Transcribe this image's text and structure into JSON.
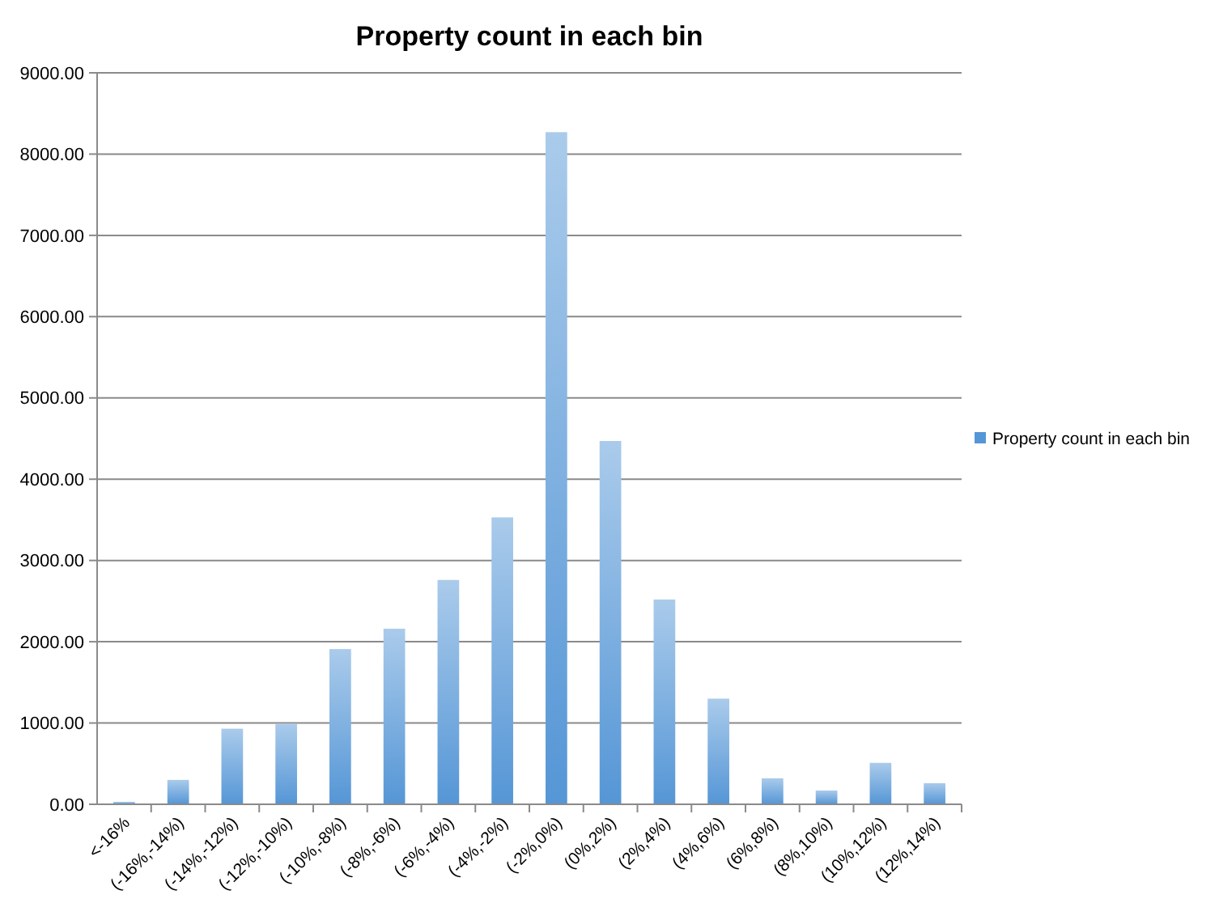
{
  "chart_data": {
    "type": "bar",
    "title": "Property count in each bin",
    "categories": [
      "<-16%",
      "(-16%,-14%)",
      "(-14%,-12%)",
      "(-12%,-10%)",
      "(-10%,-8%)",
      "(-8%,-6%)",
      "(-6%,-4%)",
      "(-4%,-2%)",
      "(-2%,0%)",
      "(0%,2%)",
      "(2%,4%)",
      "(4%,6%)",
      "(6%,8%)",
      "(8%,10%)",
      "(10%,12%)",
      "(12%,14%)"
    ],
    "series": [
      {
        "name": "Property count in each bin",
        "color": "#5596d6",
        "values": [
          30,
          300,
          930,
          990,
          1910,
          2160,
          2760,
          3530,
          8270,
          4470,
          2520,
          1300,
          320,
          170,
          510,
          260
        ]
      }
    ],
    "ylim": [
      0,
      9000
    ],
    "yticks": [
      {
        "value": 0,
        "label": "0.00"
      },
      {
        "value": 1000,
        "label": "1000.00"
      },
      {
        "value": 2000,
        "label": "2000.00"
      },
      {
        "value": 3000,
        "label": "3000.00"
      },
      {
        "value": 4000,
        "label": "4000.00"
      },
      {
        "value": 5000,
        "label": "5000.00"
      },
      {
        "value": 6000,
        "label": "6000.00"
      },
      {
        "value": 7000,
        "label": "7000.00"
      },
      {
        "value": 8000,
        "label": "8000.00"
      },
      {
        "value": 9000,
        "label": "9000.00"
      }
    ],
    "grid": "y",
    "legend": "right"
  }
}
